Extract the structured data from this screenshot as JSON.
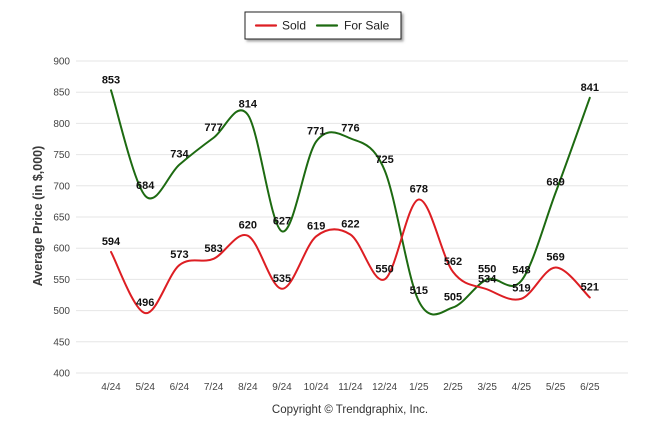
{
  "chart_data": {
    "type": "line",
    "title": "",
    "xlabel": "",
    "ylabel": "Average Price (in $,000)",
    "categories": [
      "4/24",
      "5/24",
      "6/24",
      "7/24",
      "8/24",
      "9/24",
      "10/24",
      "11/24",
      "12/24",
      "1/25",
      "2/25",
      "3/25",
      "4/25",
      "5/25",
      "6/25"
    ],
    "series": [
      {
        "name": "Sold",
        "color": "#dd1e23",
        "values": [
          594,
          496,
          573,
          583,
          620,
          535,
          619,
          622,
          550,
          678,
          562,
          534,
          519,
          569,
          521
        ],
        "labels": [
          "594",
          "496",
          "573",
          "583",
          "620",
          "535",
          "619",
          "622",
          "550",
          "678",
          "562",
          "534",
          "519",
          "569",
          "521"
        ]
      },
      {
        "name": "For Sale",
        "color": "#1d6a11",
        "values": [
          853,
          684,
          734,
          777,
          814,
          627,
          771,
          776,
          725,
          515,
          505,
          550,
          548,
          689,
          841
        ],
        "labels": [
          "853",
          "684",
          "734",
          "777",
          "814",
          "627",
          "771",
          "776",
          "725",
          "515",
          "505",
          "550",
          "548",
          "689",
          "841"
        ]
      }
    ],
    "ylim": [
      400,
      900
    ],
    "yticks": [
      400,
      450,
      500,
      550,
      600,
      650,
      700,
      750,
      800,
      850,
      900
    ],
    "ytick_labels": [
      "400",
      "450",
      "500",
      "550",
      "600",
      "650",
      "700",
      "750",
      "800",
      "850",
      "900"
    ],
    "grid": true,
    "legend_position": "top-center",
    "copyright": "Copyright © Trendgraphix, Inc."
  }
}
